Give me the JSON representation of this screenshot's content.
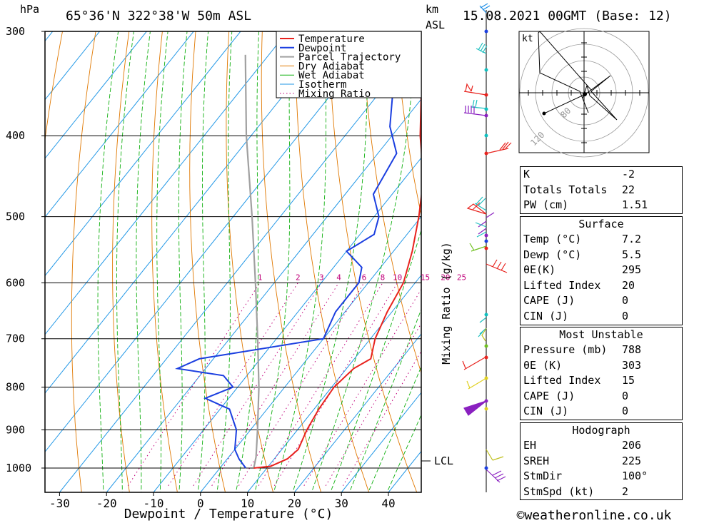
{
  "header": {
    "location": "65°36'N  322°38'W  50m  ASL",
    "datetime": "15.08.2021  00GMT  (Base: 12)",
    "pressure_unit": "hPa",
    "height_unit_line1": "km",
    "height_unit_line2": "ASL"
  },
  "footer": {
    "credit": "©weatheronline.co.uk"
  },
  "chart_data": {
    "type": "skew-t",
    "xlabel": "Dewpoint / Temperature (°C)",
    "ylabel_right": "Mixing Ratio (g/kg)",
    "x_ticks": [
      -30,
      -20,
      -10,
      0,
      10,
      20,
      30,
      40
    ],
    "pressure_ticks": [
      300,
      400,
      500,
      600,
      700,
      800,
      900,
      1000
    ],
    "mixing_ratio_labels": [
      "1",
      "2",
      "3",
      "4",
      "6",
      "8",
      "10",
      "15",
      "20",
      "25"
    ],
    "lcl_label": "LCL",
    "legend": [
      "Temperature",
      "Dewpoint",
      "Parcel Trajectory",
      "Dry Adiabat",
      "Wet Adiabat",
      "Isotherm",
      "Mixing Ratio"
    ],
    "colors": {
      "temperature": "#e8231e",
      "dewpoint": "#1b3fe0",
      "parcel": "#a0a0a0",
      "dry_adiabat": "#e07800",
      "wet_adiabat": "#10b010",
      "isotherm": "#1e96e6",
      "mixing_ratio": "#c0007a"
    },
    "temperature_profile": [
      {
        "p": 1000,
        "t": 7.2
      },
      {
        "p": 995,
        "t": 10.5
      },
      {
        "p": 975,
        "t": 12.8
      },
      {
        "p": 950,
        "t": 13.5
      },
      {
        "p": 900,
        "t": 12.0
      },
      {
        "p": 850,
        "t": 11.0
      },
      {
        "p": 800,
        "t": 10.5
      },
      {
        "p": 760,
        "t": 11.5
      },
      {
        "p": 740,
        "t": 13.5
      },
      {
        "p": 700,
        "t": 11.0
      },
      {
        "p": 650,
        "t": 9.0
      },
      {
        "p": 600,
        "t": 7.5
      },
      {
        "p": 550,
        "t": 4.0
      },
      {
        "p": 500,
        "t": -0.5
      },
      {
        "p": 450,
        "t": -6.0
      },
      {
        "p": 400,
        "t": -14.0
      },
      {
        "p": 350,
        "t": -22.0
      },
      {
        "p": 300,
        "t": -31.0
      }
    ],
    "dewpoint_profile": [
      {
        "p": 1000,
        "t": 5.5
      },
      {
        "p": 975,
        "t": 2.5
      },
      {
        "p": 950,
        "t": 0.0
      },
      {
        "p": 900,
        "t": -3.0
      },
      {
        "p": 850,
        "t": -8.0
      },
      {
        "p": 825,
        "t": -15.0
      },
      {
        "p": 800,
        "t": -11.0
      },
      {
        "p": 775,
        "t": -15.0
      },
      {
        "p": 760,
        "t": -26.0
      },
      {
        "p": 740,
        "t": -23.0
      },
      {
        "p": 700,
        "t": 0.0
      },
      {
        "p": 650,
        "t": -2.0
      },
      {
        "p": 600,
        "t": -2.0
      },
      {
        "p": 575,
        "t": -4.0
      },
      {
        "p": 550,
        "t": -10.0
      },
      {
        "p": 525,
        "t": -7.0
      },
      {
        "p": 500,
        "t": -9.0
      },
      {
        "p": 470,
        "t": -14.0
      },
      {
        "p": 420,
        "t": -16.0
      },
      {
        "p": 390,
        "t": -22.0
      },
      {
        "p": 350,
        "t": -28.0
      },
      {
        "p": 300,
        "t": -40.0
      }
    ],
    "parcel_profile": [
      {
        "p": 1000,
        "t": 7.2
      },
      {
        "p": 970,
        "t": 5.8
      },
      {
        "p": 900,
        "t": 1.5
      },
      {
        "p": 800,
        "t": -5.5
      },
      {
        "p": 700,
        "t": -14.0
      },
      {
        "p": 600,
        "t": -24.0
      },
      {
        "p": 500,
        "t": -36.0
      },
      {
        "p": 400,
        "t": -51.0
      },
      {
        "p": 320,
        "t": -65.0
      }
    ]
  },
  "hodograph": {
    "unit": "kt",
    "ring_labels": [
      "80",
      "120"
    ]
  },
  "indices": [
    {
      "label": "K",
      "value": "-2"
    },
    {
      "label": "Totals Totals",
      "value": "22"
    },
    {
      "label": "PW (cm)",
      "value": "1.51"
    }
  ],
  "surface": {
    "title": "Surface",
    "rows": [
      {
        "label": "Temp (°C)",
        "value": "7.2"
      },
      {
        "label": "Dewp (°C)",
        "value": "5.5"
      },
      {
        "label": "θE(K)",
        "value": "295"
      },
      {
        "label": "Lifted Index",
        "value": "20"
      },
      {
        "label": "CAPE (J)",
        "value": "0"
      },
      {
        "label": "CIN (J)",
        "value": "0"
      }
    ]
  },
  "most_unstable": {
    "title": "Most Unstable",
    "rows": [
      {
        "label": "Pressure (mb)",
        "value": "788"
      },
      {
        "label": "θE (K)",
        "value": "303"
      },
      {
        "label": "Lifted Index",
        "value": "15"
      },
      {
        "label": "CAPE (J)",
        "value": "0"
      },
      {
        "label": "CIN (J)",
        "value": "0"
      }
    ]
  },
  "hodograph_box": {
    "title": "Hodograph",
    "rows": [
      {
        "label": "EH",
        "value": "206"
      },
      {
        "label": "SREH",
        "value": "225"
      },
      {
        "label": "StmDir",
        "value": "100°"
      },
      {
        "label": "StmSpd (kt)",
        "value": "2"
      }
    ]
  }
}
